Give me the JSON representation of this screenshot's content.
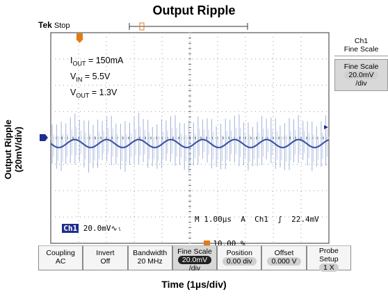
{
  "title": "Output Ripple",
  "ylabel_line1": "Output Ripple",
  "ylabel_line2": "(20mV/div)",
  "xlabel": "Time (1µs/div)",
  "scope": {
    "brand": "Tek",
    "state": "Stop",
    "trigger_marker": "T",
    "channel_marker": "1"
  },
  "notes": {
    "iout_sym": "I",
    "iout_sub": "OUT",
    "iout_val": " = 150mA",
    "vin_sym": "V",
    "vin_sub": "IN",
    "vin_val": " = 5.5V",
    "vout_sym": "V",
    "vout_sub": "OUT",
    "vout_val": " = 1.3V"
  },
  "status": {
    "ch_label": "Ch1",
    "ch_scale": " 20.0mV",
    "ch_bw_symbol": "∿ₗ",
    "timebase": "M 1.00µs  A  Ch1  ʃ  22.4mV",
    "trigger_pos": "10.00 %"
  },
  "side_panel": {
    "header_line1": "Ch1",
    "header_line2": "Fine Scale",
    "btn_line1": "Fine Scale",
    "btn_value": "20.0mV",
    "btn_line3": "/div"
  },
  "menu": [
    {
      "line1": "Coupling",
      "line2": "AC"
    },
    {
      "line1": "Invert",
      "line2": "Off"
    },
    {
      "line1": "Bandwidth",
      "line2": "20 MHz"
    },
    {
      "line1": "Fine Scale",
      "line2": "20.0mV",
      "line3": "/div"
    },
    {
      "line1": "Position",
      "line2": "0.00 div"
    },
    {
      "line1": "Offset",
      "line2": "0.000 V"
    },
    {
      "line1": "Probe",
      "line2": "Setup",
      "line3": "1 X"
    }
  ],
  "colors": {
    "trace_spike": "#9fb0d8",
    "trace_main": "#3d55a8",
    "trigger": "#e07b18",
    "channel": "#1f2d8f"
  },
  "chart_data": {
    "type": "line",
    "title": "Output Ripple",
    "xlabel": "Time (1µs/div)",
    "ylabel": "Output Ripple (20mV/div)",
    "x_divisions": 10,
    "y_divisions": 8,
    "x_unit_per_div": "1µs",
    "y_unit_per_div": "20mV",
    "grid": true,
    "series": [
      {
        "description_visible": "waveform",
        "ripple_amplitude_div": 0.15,
        "ripple_period_div": 1.15,
        "switching_spike_amplitude_div": 0.9,
        "switching_spikes": 61
      }
    ]
  }
}
